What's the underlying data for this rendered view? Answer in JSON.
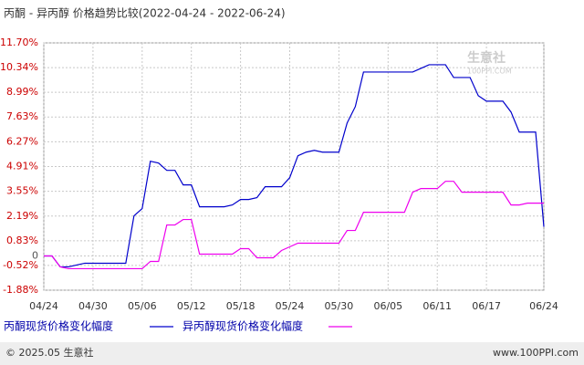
{
  "chart_data": {
    "type": "line",
    "title": "丙酮 - 异丙醇 价格趋势比较(2022-04-24 - 2022-06-24)",
    "categories": [
      "04/24",
      null,
      null,
      null,
      null,
      null,
      "04/30",
      null,
      null,
      null,
      null,
      null,
      "05/06",
      null,
      null,
      null,
      null,
      null,
      "05/12",
      null,
      null,
      null,
      null,
      null,
      "05/18",
      null,
      null,
      null,
      null,
      null,
      "05/24",
      null,
      null,
      null,
      null,
      null,
      "05/30",
      null,
      null,
      null,
      null,
      null,
      "06/05",
      null,
      null,
      null,
      null,
      null,
      "06/11",
      null,
      null,
      null,
      null,
      null,
      "06/17",
      null,
      null,
      null,
      null,
      null,
      null,
      "06/24"
    ],
    "series": [
      {
        "name": "丙酮现货价格变化幅度",
        "color": "#0000cc",
        "values": [
          0,
          0,
          -0.6,
          -0.6,
          -0.5,
          -0.4,
          -0.4,
          -0.4,
          -0.4,
          -0.4,
          -0.4,
          2.2,
          2.6,
          5.2,
          5.1,
          4.7,
          4.7,
          3.9,
          3.9,
          2.7,
          2.7,
          2.7,
          2.7,
          2.8,
          3.1,
          3.1,
          3.2,
          3.8,
          3.8,
          3.8,
          4.3,
          5.5,
          5.7,
          5.8,
          5.7,
          5.7,
          5.7,
          7.3,
          8.2,
          10.1,
          10.1,
          10.1,
          10.1,
          10.1,
          10.1,
          10.1,
          10.3,
          10.5,
          10.5,
          10.5,
          9.8,
          9.8,
          9.8,
          8.8,
          8.5,
          8.5,
          8.5,
          7.9,
          6.8,
          6.8,
          6.8,
          1.6
        ]
      },
      {
        "name": "异丙醇现货价格变化幅度",
        "color": "#ee00ee",
        "values": [
          0,
          0,
          -0.6,
          -0.7,
          -0.7,
          -0.7,
          -0.7,
          -0.7,
          -0.7,
          -0.7,
          -0.7,
          -0.7,
          -0.7,
          -0.3,
          -0.3,
          1.7,
          1.7,
          2.0,
          2.0,
          0.1,
          0.1,
          0.1,
          0.1,
          0.1,
          0.4,
          0.4,
          -0.1,
          -0.1,
          -0.1,
          0.3,
          0.5,
          0.7,
          0.7,
          0.7,
          0.7,
          0.7,
          0.7,
          1.4,
          1.4,
          2.4,
          2.4,
          2.4,
          2.4,
          2.4,
          2.4,
          3.5,
          3.7,
          3.7,
          3.7,
          4.1,
          4.1,
          3.5,
          3.5,
          3.5,
          3.5,
          3.5,
          3.5,
          2.8,
          2.8,
          2.9,
          2.9,
          2.9
        ]
      }
    ],
    "ylim": [
      -1.88,
      11.7
    ],
    "yticks": [
      {
        "value": -1.88,
        "label": "-1.88%"
      },
      {
        "value": -0.52,
        "label": "-0.52%"
      },
      0,
      {
        "value": 0.83,
        "label": "0.83%"
      },
      {
        "value": 2.19,
        "label": "2.19%"
      },
      {
        "value": 3.55,
        "label": "3.55%"
      },
      {
        "value": 4.91,
        "label": "4.91%"
      },
      {
        "value": 6.27,
        "label": "6.27%"
      },
      {
        "value": 7.63,
        "label": "7.63%"
      },
      {
        "value": 8.99,
        "label": "8.99%"
      },
      {
        "value": 10.34,
        "label": "10.34%"
      },
      {
        "value": 11.7,
        "label": "11.70%"
      }
    ],
    "grid": true
  },
  "watermark": {
    "brand": "生意社",
    "site": "100PPI.COM"
  },
  "footer": {
    "copyright": "© 2025.05 生意社",
    "site": "www.100PPI.com"
  }
}
